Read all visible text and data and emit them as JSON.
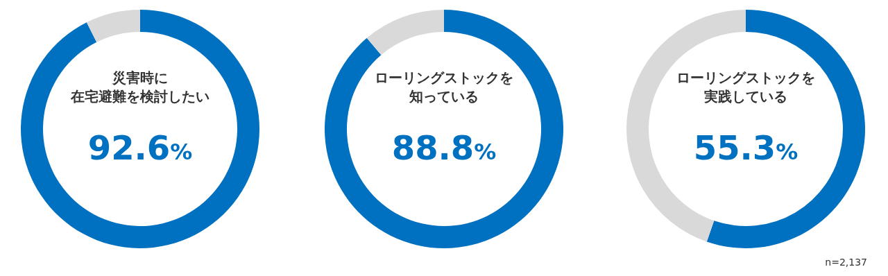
{
  "chart_data": [
    {
      "type": "donut",
      "title": "災害時に在宅避難を検討したい",
      "categories": [
        null,
        null
      ],
      "values": [
        92.6,
        7.4
      ],
      "colors": [
        "#0070c0",
        "#d9d9d9"
      ],
      "value_labels": [
        "92.6%",
        null
      ]
    },
    {
      "type": "donut",
      "title": "ローリングストックを知っている",
      "categories": [
        null,
        null
      ],
      "values": [
        88.8,
        11.2
      ],
      "colors": [
        "#0070c0",
        "#d9d9d9"
      ],
      "value_labels": [
        "88.8%",
        null
      ]
    },
    {
      "type": "donut",
      "title": "ローリングストックを実践している",
      "categories": [
        null,
        null
      ],
      "values": [
        55.3,
        44.7
      ],
      "colors": [
        "#0070c0",
        "#d9d9d9"
      ],
      "value_labels": [
        "55.3%",
        null
      ],
      "annotations": [
        "n=2,137"
      ]
    }
  ]
}
